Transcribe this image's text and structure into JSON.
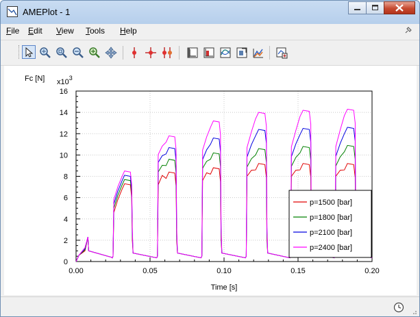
{
  "window": {
    "title": "AMEPlot - 1",
    "icon": "ameplot-app-icon"
  },
  "menu": [
    {
      "label": "File",
      "accel": "F"
    },
    {
      "label": "Edit",
      "accel": "E"
    },
    {
      "label": "View",
      "accel": "V"
    },
    {
      "label": "Tools",
      "accel": "T"
    },
    {
      "label": "Help",
      "accel": "H"
    }
  ],
  "toolbar": {
    "buttons": [
      "select-pointer-icon",
      "zoom-fit-icon",
      "zoom-box-icon",
      "zoom-out-icon",
      "zoom-in-icon",
      "pan-icon",
      "marker-single-icon",
      "marker-cross-icon",
      "marker-double-icon",
      "axis-settings-icon",
      "histogram-icon",
      "curve-icon",
      "export-icon",
      "3d-plot-icon",
      "add-plot-icon"
    ]
  },
  "chart_data": {
    "type": "line",
    "ylabel": "Fc [N]",
    "y_multiplier": "x10",
    "y_multiplier_exp": "3",
    "xlabel": "Time [s]",
    "xlim": [
      0,
      0.2
    ],
    "ylim": [
      0,
      16
    ],
    "x_ticks": [
      "0.00",
      "0.05",
      "0.10",
      "0.15",
      "0.20"
    ],
    "y_ticks": [
      "0",
      "2",
      "4",
      "6",
      "8",
      "10",
      "12",
      "14",
      "16"
    ],
    "grid": true,
    "legend_position": "bottom-right",
    "colors": {
      "p1500": "#e00000",
      "p1800": "#008000",
      "p2100": "#0000e0",
      "p2400": "#ff00ff"
    },
    "pulses": [
      {
        "t_start": 0.025,
        "t_end": 0.038,
        "peaks": [
          7.3,
          7.7,
          8.1,
          8.5
        ]
      },
      {
        "t_start": 0.055,
        "t_end": 0.068,
        "peaks": [
          8.4,
          9.6,
          10.7,
          11.8
        ]
      },
      {
        "t_start": 0.085,
        "t_end": 0.098,
        "peaks": [
          8.8,
          10.2,
          11.6,
          13.2
        ]
      },
      {
        "t_start": 0.115,
        "t_end": 0.129,
        "peaks": [
          9.2,
          10.6,
          12.4,
          14.0
        ]
      },
      {
        "t_start": 0.145,
        "t_end": 0.159,
        "peaks": [
          9.2,
          10.8,
          12.5,
          14.2
        ]
      },
      {
        "t_start": 0.175,
        "t_end": 0.189,
        "peaks": [
          9.2,
          10.9,
          12.6,
          14.3
        ]
      }
    ],
    "series": [
      {
        "name": "p=1500 [bar]",
        "color": "#e00000"
      },
      {
        "name": "p=1800 [bar]",
        "color": "#008000"
      },
      {
        "name": "p=2100 [bar]",
        "color": "#0000e0"
      },
      {
        "name": "p=2400 [bar]",
        "color": "#ff00ff"
      }
    ]
  }
}
